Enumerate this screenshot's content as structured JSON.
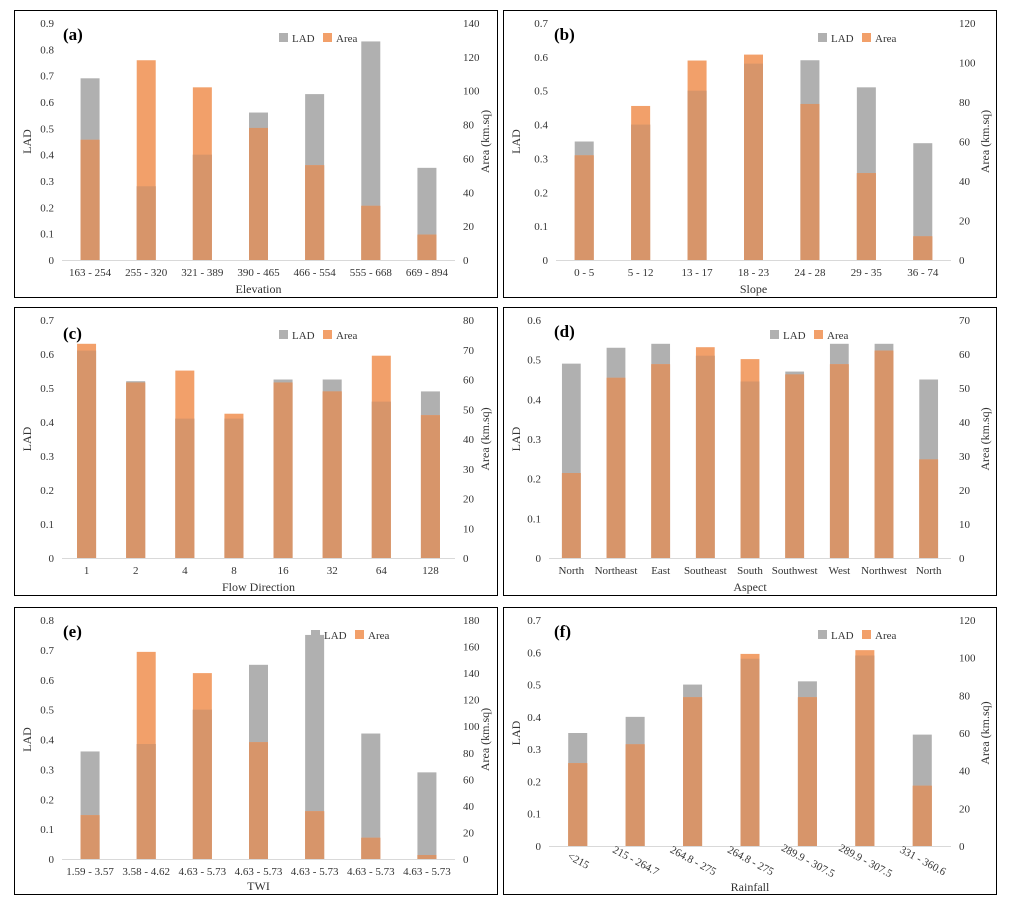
{
  "colors": {
    "lad": "#B0B0B0",
    "area": "#F2A06A",
    "overlap": "#D7956A"
  },
  "chart_data": [
    {
      "type": "bar",
      "panel_label": "(a)",
      "title": "",
      "xlabel": "Elevation",
      "ylabel": "LAD",
      "y2label": "Area (km.sq)",
      "categories": [
        "163 - 254",
        "255 - 320",
        "321 - 389",
        "390 - 465",
        "466 - 554",
        "555 - 668",
        "669 - 894"
      ],
      "ylim": [
        0,
        0.9
      ],
      "yticks": [
        "0",
        "0.1",
        "0.2",
        "0.3",
        "0.4",
        "0.5",
        "0.6",
        "0.7",
        "0.8",
        "0.9"
      ],
      "y2lim": [
        0,
        140
      ],
      "y2ticks": [
        "0",
        "20",
        "40",
        "60",
        "80",
        "100",
        "120",
        "140"
      ],
      "series": [
        {
          "name": "LAD",
          "axis": "left",
          "values": [
            0.69,
            0.28,
            0.4,
            0.56,
            0.63,
            0.83,
            0.35
          ]
        },
        {
          "name": "Area",
          "axis": "right",
          "values": [
            71,
            118,
            102,
            78,
            56,
            32,
            15
          ]
        }
      ],
      "legend": [
        "LAD",
        "Area"
      ],
      "legend_position": "top-right"
    },
    {
      "type": "bar",
      "panel_label": "(b)",
      "title": "",
      "xlabel": "Slope",
      "ylabel": "LAD",
      "y2label": "Area (km.sq)",
      "categories": [
        "0 - 5",
        "5 - 12",
        "13 - 17",
        "18 - 23",
        "24 - 28",
        "29 - 35",
        "36 - 74"
      ],
      "ylim": [
        0,
        0.7
      ],
      "yticks": [
        "0",
        "0.1",
        "0.2",
        "0.3",
        "0.4",
        "0.5",
        "0.6",
        "0.7"
      ],
      "y2lim": [
        0,
        120
      ],
      "y2ticks": [
        "0",
        "20",
        "40",
        "60",
        "80",
        "100",
        "120"
      ],
      "series": [
        {
          "name": "LAD",
          "axis": "left",
          "values": [
            0.35,
            0.4,
            0.5,
            0.58,
            0.59,
            0.51,
            0.345
          ]
        },
        {
          "name": "Area",
          "axis": "right",
          "values": [
            53,
            78,
            101,
            104,
            79,
            44,
            12
          ]
        }
      ],
      "legend": [
        "LAD",
        "Area"
      ],
      "legend_position": "top-right"
    },
    {
      "type": "bar",
      "panel_label": "(c)",
      "title": "",
      "xlabel": "Flow Direction",
      "ylabel": "LAD",
      "y2label": "Area (km.sq)",
      "categories": [
        "1",
        "2",
        "4",
        "8",
        "16",
        "32",
        "64",
        "128"
      ],
      "ylim": [
        0,
        0.7
      ],
      "yticks": [
        "0",
        "0.1",
        "0.2",
        "0.3",
        "0.4",
        "0.5",
        "0.6",
        "0.7"
      ],
      "y2lim": [
        0,
        80
      ],
      "y2ticks": [
        "0",
        "10",
        "20",
        "30",
        "40",
        "50",
        "60",
        "70",
        "80"
      ],
      "series": [
        {
          "name": "LAD",
          "axis": "left",
          "values": [
            0.61,
            0.52,
            0.41,
            0.41,
            0.525,
            0.525,
            0.46,
            0.49
          ]
        },
        {
          "name": "Area",
          "axis": "right",
          "values": [
            72,
            59,
            63,
            48.5,
            59,
            56,
            68,
            48
          ]
        }
      ],
      "legend": [
        "LAD",
        "Area"
      ],
      "legend_position": "top-right"
    },
    {
      "type": "bar",
      "panel_label": "(d)",
      "title": "",
      "xlabel": "Aspect",
      "ylabel": "LAD",
      "y2label": "Area (km.sq)",
      "categories": [
        "North",
        "Northeast",
        "East",
        "Southeast",
        "South",
        "Southwest",
        "West",
        "Northwest",
        "North"
      ],
      "ylim": [
        0,
        0.6
      ],
      "yticks": [
        "0",
        "0.1",
        "0.2",
        "0.3",
        "0.4",
        "0.5",
        "0.6"
      ],
      "y2lim": [
        0,
        70
      ],
      "y2ticks": [
        "0",
        "10",
        "20",
        "30",
        "40",
        "50",
        "60",
        "70"
      ],
      "series": [
        {
          "name": "LAD",
          "axis": "left",
          "values": [
            0.49,
            0.53,
            0.54,
            0.51,
            0.445,
            0.47,
            0.54,
            0.54,
            0.45
          ]
        },
        {
          "name": "Area",
          "axis": "right",
          "values": [
            25,
            53,
            57,
            62,
            58.5,
            54,
            57,
            61,
            29
          ]
        }
      ],
      "legend": [
        "LAD",
        "Area"
      ],
      "legend_position": "top-right"
    },
    {
      "type": "bar",
      "panel_label": "(e)",
      "title": "",
      "xlabel": "TWI",
      "ylabel": "LAD",
      "y2label": "Area (km.sq)",
      "categories": [
        "1.59 - 3.57",
        "3.58 - 4.62",
        "4.63 - 5.73",
        "4.63 - 5.73",
        "4.63 - 5.73",
        "4.63 - 5.73",
        "4.63 - 5.73"
      ],
      "ylim": [
        0,
        0.8
      ],
      "yticks": [
        "0",
        "0.1",
        "0.2",
        "0.3",
        "0.4",
        "0.5",
        "0.6",
        "0.7",
        "0.8"
      ],
      "y2lim": [
        0,
        180
      ],
      "y2ticks": [
        "0",
        "20",
        "40",
        "60",
        "80",
        "100",
        "120",
        "140",
        "160",
        "180"
      ],
      "series": [
        {
          "name": "LAD",
          "axis": "left",
          "values": [
            0.36,
            0.385,
            0.5,
            0.65,
            0.75,
            0.42,
            0.29
          ]
        },
        {
          "name": "Area",
          "axis": "right",
          "values": [
            33,
            156,
            140,
            88,
            36,
            16,
            3
          ]
        }
      ],
      "legend": [
        "LAD",
        "Area"
      ],
      "legend_position": "top-right"
    },
    {
      "type": "bar",
      "panel_label": "(f)",
      "title": "",
      "xlabel": "Rainfall",
      "ylabel": "LAD",
      "y2label": "Area (km.sq)",
      "categories": [
        "<215",
        "215 - 264.7",
        "264.8 - 275",
        "264.8 - 275",
        "289.9 - 307.5",
        "289.9 - 307.5",
        "331 - 360.6"
      ],
      "ylim": [
        0,
        0.7
      ],
      "yticks": [
        "0",
        "0.1",
        "0.2",
        "0.3",
        "0.4",
        "0.5",
        "0.6",
        "0.7"
      ],
      "y2lim": [
        0,
        120
      ],
      "y2ticks": [
        "0",
        "20",
        "40",
        "60",
        "80",
        "100",
        "120"
      ],
      "series": [
        {
          "name": "LAD",
          "axis": "left",
          "values": [
            0.35,
            0.4,
            0.5,
            0.58,
            0.51,
            0.59,
            0.345
          ]
        },
        {
          "name": "Area",
          "axis": "right",
          "values": [
            44,
            54,
            79,
            102,
            79,
            104,
            32
          ]
        }
      ],
      "legend": [
        "LAD",
        "Area"
      ],
      "legend_position": "top-right"
    }
  ]
}
